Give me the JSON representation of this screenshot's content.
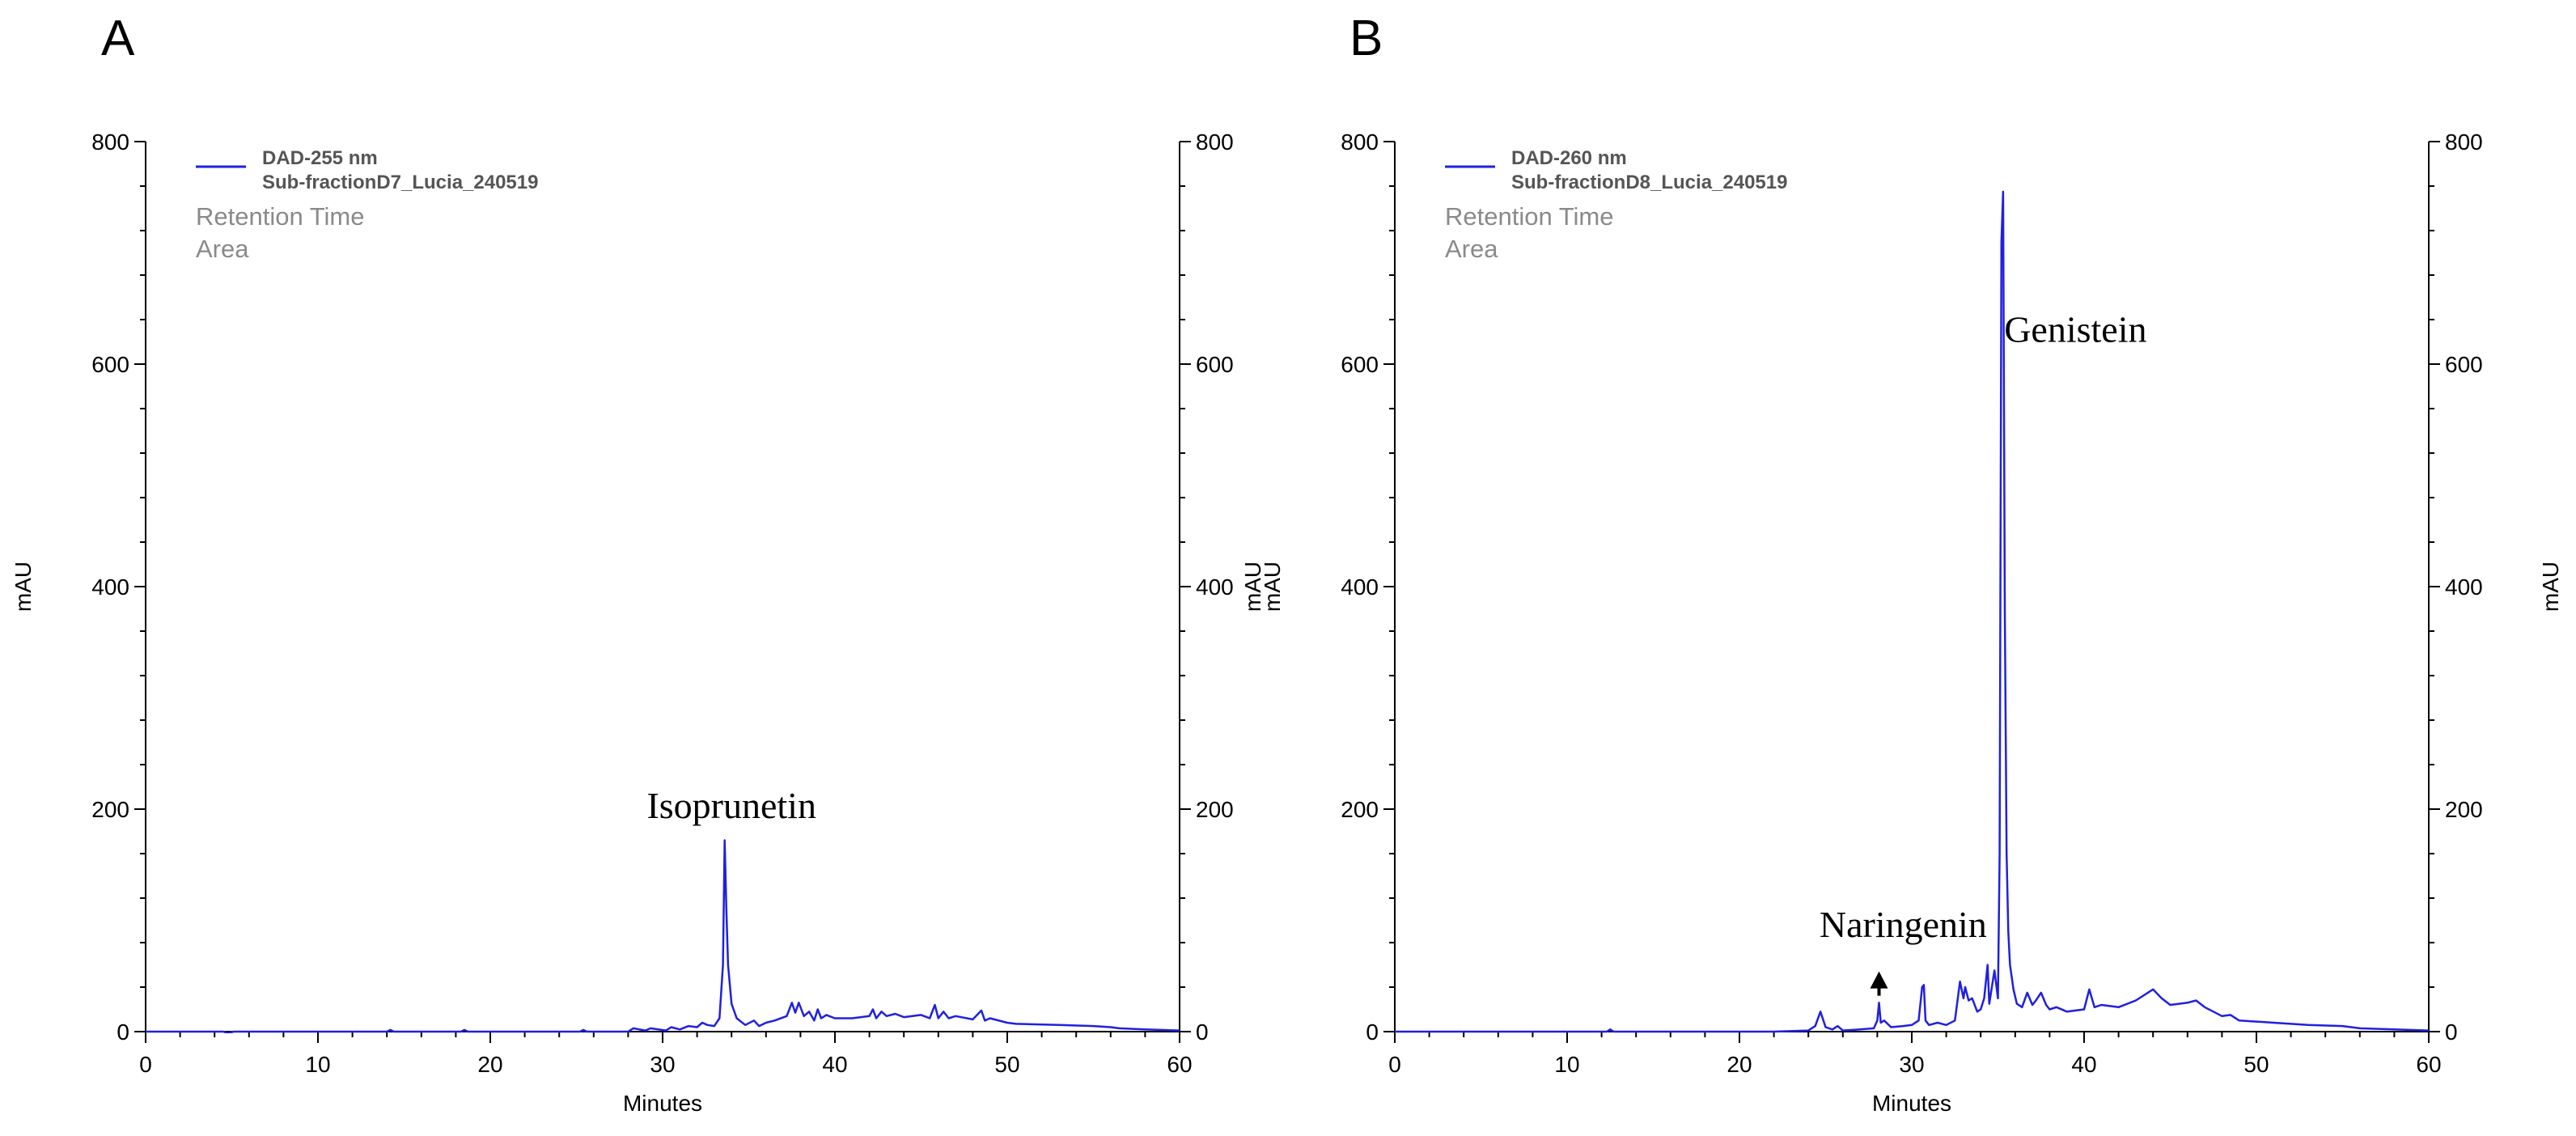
{
  "chart_data": [
    {
      "type": "line",
      "panel_label": "A",
      "series_name": "DAD-255 nm",
      "sample_name": "Sub-fractionD7_Lucia_240519",
      "legend_extra": [
        "Retention Time",
        "Area"
      ],
      "xlabel": "Minutes",
      "ylabel_left": "mAU",
      "ylabel_right": "mAU",
      "xlim": [
        0,
        60
      ],
      "ylim": [
        0,
        800
      ],
      "x_ticks": [
        "0",
        "10",
        "20",
        "30",
        "40",
        "50",
        "60"
      ],
      "y_ticks": [
        "0",
        "200",
        "400",
        "600",
        "800"
      ],
      "line_color": "#2020e0",
      "annotations": [
        {
          "text": "Isoprunetin",
          "x": 34.0,
          "y": 192
        }
      ],
      "x": [
        0,
        4.5,
        4.8,
        5.1,
        10,
        14,
        14.2,
        14.4,
        18.3,
        18.5,
        18.7,
        22,
        25.2,
        25.4,
        25.6,
        28,
        28.3,
        29,
        29.3,
        30.2,
        30.5,
        31,
        31.5,
        32,
        32.3,
        32.6,
        33,
        33.3,
        33.5,
        33.6,
        33.7,
        33.8,
        34,
        34.3,
        34.8,
        35.3,
        35.6,
        36,
        36.5,
        37.2,
        37.5,
        37.7,
        37.9,
        38.2,
        38.5,
        38.8,
        39,
        39.2,
        39.5,
        40,
        41,
        42,
        42.2,
        42.4,
        42.7,
        43,
        43.5,
        44,
        44.5,
        45,
        45.5,
        45.8,
        46,
        46.3,
        46.6,
        47,
        48,
        48.5,
        48.7,
        49,
        50,
        50.5,
        53,
        55,
        56,
        56.5,
        58,
        60
      ],
      "y": [
        0,
        0,
        -1.5,
        0,
        0,
        0,
        1.5,
        0,
        0,
        1.5,
        0,
        0,
        0,
        1.5,
        0,
        0,
        3,
        1,
        3,
        1,
        4,
        2,
        5,
        4,
        8,
        6,
        5,
        12,
        60,
        172,
        110,
        60,
        25,
        12,
        6,
        10,
        5,
        8,
        10,
        14,
        26,
        17,
        26,
        14,
        18,
        10,
        20,
        12,
        15,
        12,
        12,
        14,
        20,
        12,
        18,
        14,
        16,
        13,
        14,
        15,
        12,
        24,
        12,
        18,
        12,
        14,
        11,
        19,
        10,
        12,
        8,
        7,
        6,
        5,
        4,
        3,
        2,
        1
      ]
    },
    {
      "type": "line",
      "panel_label": "B",
      "series_name": "DAD-260 nm",
      "sample_name": "Sub-fractionD8_Lucia_240519",
      "legend_extra": [
        "Retention Time",
        "Area"
      ],
      "xlabel": "Minutes",
      "ylabel_left": "mAU",
      "ylabel_right": "mAU",
      "xlim": [
        0,
        60
      ],
      "ylim": [
        0,
        800
      ],
      "x_ticks": [
        "0",
        "10",
        "20",
        "30",
        "40",
        "50",
        "60"
      ],
      "y_ticks": [
        "0",
        "200",
        "400",
        "600",
        "800"
      ],
      "line_color": "#2020e0",
      "annotations": [
        {
          "text": "Genistein",
          "x": 39.5,
          "y": 620
        },
        {
          "text": "Naringenin",
          "x": 29.5,
          "y": 85,
          "arrow_to": {
            "x": 28.1,
            "y": 25
          }
        }
      ],
      "x": [
        0,
        12.3,
        12.5,
        12.7,
        20,
        22,
        24,
        24.4,
        24.7,
        25,
        25.4,
        25.7,
        26,
        27,
        27.8,
        28,
        28.1,
        28.2,
        28.4,
        28.8,
        29.5,
        30,
        30.4,
        30.6,
        30.7,
        30.8,
        31,
        31.5,
        32,
        32.5,
        32.8,
        33,
        33.1,
        33.3,
        33.5,
        33.8,
        34,
        34.2,
        34.4,
        34.5,
        34.8,
        35,
        35.1,
        35.2,
        35.3,
        35.4,
        35.5,
        35.6,
        35.7,
        35.9,
        36.1,
        36.4,
        36.7,
        37,
        37.2,
        37.5,
        37.8,
        38,
        38.4,
        39,
        40,
        40.3,
        40.6,
        41,
        42,
        43,
        44,
        44.5,
        45,
        46,
        46.5,
        47,
        47.5,
        48,
        48.5,
        49,
        50,
        51,
        53,
        55,
        56,
        58,
        60
      ],
      "y": [
        0,
        0,
        2,
        0,
        0,
        0,
        1,
        5,
        18,
        4,
        2,
        5,
        1,
        2,
        3,
        10,
        26,
        8,
        10,
        4,
        5,
        6,
        10,
        40,
        42,
        10,
        6,
        8,
        6,
        10,
        45,
        30,
        40,
        28,
        30,
        18,
        20,
        30,
        60,
        25,
        55,
        30,
        160,
        710,
        755,
        380,
        160,
        90,
        60,
        38,
        25,
        22,
        35,
        24,
        28,
        35,
        24,
        20,
        22,
        18,
        20,
        38,
        22,
        24,
        22,
        28,
        38,
        30,
        24,
        26,
        28,
        22,
        18,
        14,
        15,
        10,
        9,
        8,
        6,
        5,
        3,
        2,
        1
      ]
    }
  ]
}
